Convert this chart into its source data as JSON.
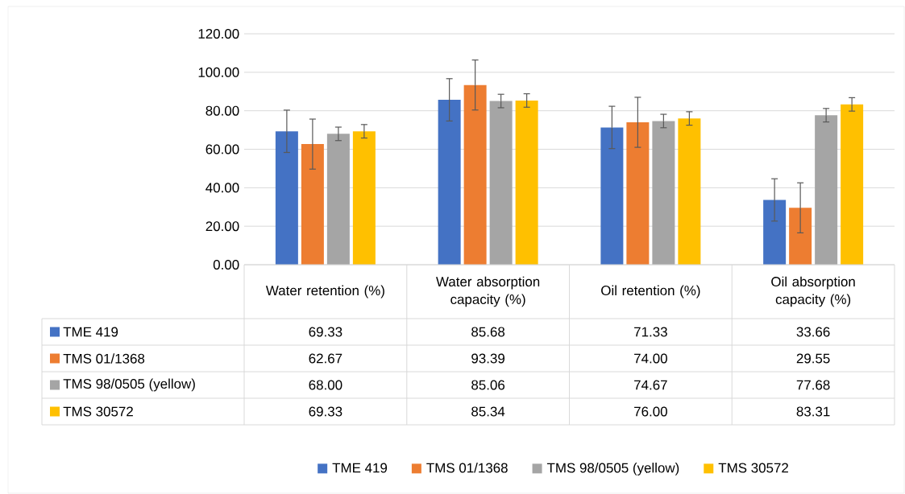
{
  "chart_data": {
    "type": "bar",
    "categories": [
      "Water retention (%)",
      "Water absorption capacity (%)",
      "Oil retention (%)",
      "Oil absorption capacity (%)"
    ],
    "series": [
      {
        "name": "TME 419",
        "color": "#4472c4",
        "values": [
          69.33,
          85.68,
          71.33,
          33.66
        ],
        "errors": [
          11,
          11,
          11,
          11
        ],
        "value_labels": [
          "69.33",
          "85.68",
          "71.33",
          "33.66"
        ]
      },
      {
        "name": "TMS 01/1368",
        "color": "#ed7d31",
        "values": [
          62.67,
          93.39,
          74.0,
          29.55
        ],
        "errors": [
          13,
          13,
          13,
          13
        ],
        "value_labels": [
          "62.67",
          "93.39",
          "74.00",
          "29.55"
        ]
      },
      {
        "name": "TMS 98/0505 (yellow)",
        "color": "#a5a5a5",
        "values": [
          68.0,
          85.06,
          74.67,
          77.68
        ],
        "errors": [
          3.5,
          3.5,
          3.5,
          3.5
        ],
        "value_labels": [
          "68.00",
          "85.06",
          "74.67",
          "77.68"
        ]
      },
      {
        "name": "TMS 30572",
        "color": "#ffc000",
        "values": [
          69.33,
          85.34,
          76.0,
          83.31
        ],
        "errors": [
          3.5,
          3.5,
          3.5,
          3.5
        ],
        "value_labels": [
          "69.33",
          "85.34",
          "76.00",
          "83.31"
        ]
      }
    ],
    "ylim": [
      0,
      120
    ],
    "yticks": [
      {
        "value": 0,
        "label": "0.00"
      },
      {
        "value": 20,
        "label": "20.00"
      },
      {
        "value": 40,
        "label": "40.00"
      },
      {
        "value": 60,
        "label": "60.00"
      },
      {
        "value": 80,
        "label": "80.00"
      },
      {
        "value": 100,
        "label": "100.00"
      },
      {
        "value": 120,
        "label": "120.00"
      }
    ],
    "grid": "y",
    "legend": "bottom"
  }
}
